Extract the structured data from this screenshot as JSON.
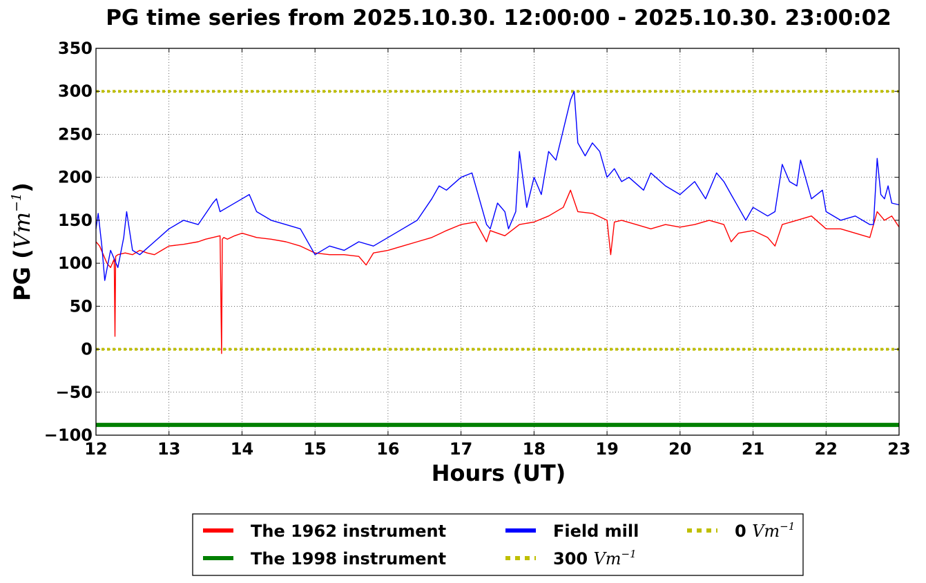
{
  "chart_data": {
    "type": "line",
    "title": "PG time series from 2025.10.30. 12:00:00 - 2025.10.30. 23:00:02",
    "xlabel": "Hours (UT)",
    "ylabel_text": "PG (",
    "ylabel_unit": "Vm",
    "ylabel_exp": "−1",
    "ylabel_close": ")",
    "xlim": [
      12,
      23
    ],
    "ylim": [
      -100,
      350
    ],
    "xticks": [
      12,
      13,
      14,
      15,
      16,
      17,
      18,
      19,
      20,
      21,
      22,
      23
    ],
    "yticks": [
      -100,
      -50,
      0,
      50,
      100,
      150,
      200,
      250,
      300,
      350
    ],
    "ytick_labels": [
      "−100",
      "−50",
      "0",
      "50",
      "100",
      "150",
      "200",
      "250",
      "300",
      "350"
    ],
    "grid": true,
    "legend_position": "bottom-center",
    "series": [
      {
        "name": "The 1962 instrument",
        "color": "#ff0000",
        "x": [
          12.0,
          12.05,
          12.1,
          12.15,
          12.2,
          12.25,
          12.26,
          12.27,
          12.3,
          12.4,
          12.5,
          12.6,
          12.7,
          12.8,
          12.9,
          13.0,
          13.2,
          13.4,
          13.5,
          13.6,
          13.7,
          13.72,
          13.73,
          13.75,
          13.8,
          13.9,
          14.0,
          14.2,
          14.4,
          14.6,
          14.8,
          15.0,
          15.2,
          15.4,
          15.6,
          15.7,
          15.8,
          16.0,
          16.2,
          16.4,
          16.6,
          16.8,
          17.0,
          17.2,
          17.35,
          17.4,
          17.6,
          17.8,
          18.0,
          18.2,
          18.4,
          18.5,
          18.6,
          18.8,
          19.0,
          19.05,
          19.1,
          19.2,
          19.4,
          19.6,
          19.8,
          20.0,
          20.2,
          20.4,
          20.6,
          20.7,
          20.8,
          21.0,
          21.2,
          21.3,
          21.4,
          21.6,
          21.8,
          22.0,
          22.2,
          22.4,
          22.6,
          22.7,
          22.8,
          22.9,
          23.0
        ],
        "y": [
          125,
          120,
          110,
          100,
          95,
          105,
          15,
          108,
          110,
          112,
          110,
          115,
          112,
          110,
          115,
          120,
          122,
          125,
          128,
          130,
          132,
          -5,
          128,
          130,
          128,
          132,
          135,
          130,
          128,
          125,
          120,
          112,
          110,
          110,
          108,
          98,
          112,
          115,
          120,
          125,
          130,
          138,
          145,
          148,
          125,
          138,
          132,
          145,
          148,
          155,
          165,
          185,
          160,
          158,
          150,
          110,
          148,
          150,
          145,
          140,
          145,
          142,
          145,
          150,
          145,
          125,
          135,
          138,
          130,
          120,
          145,
          150,
          155,
          140,
          140,
          135,
          130,
          160,
          150,
          155,
          142
        ]
      },
      {
        "name": "The 1998 instrument",
        "color": "#008000",
        "x": [
          12.0,
          23.0
        ],
        "y": [
          -88,
          -88
        ]
      },
      {
        "name": "Field mill",
        "color": "#0000ff",
        "x": [
          12.0,
          12.03,
          12.08,
          12.12,
          12.2,
          12.3,
          12.38,
          12.42,
          12.5,
          12.6,
          12.8,
          13.0,
          13.2,
          13.4,
          13.6,
          13.65,
          13.7,
          13.8,
          14.0,
          14.1,
          14.2,
          14.4,
          14.6,
          14.8,
          15.0,
          15.2,
          15.4,
          15.6,
          15.8,
          16.0,
          16.2,
          16.4,
          16.6,
          16.7,
          16.8,
          17.0,
          17.15,
          17.3,
          17.35,
          17.4,
          17.5,
          17.6,
          17.65,
          17.75,
          17.8,
          17.9,
          18.0,
          18.1,
          18.2,
          18.3,
          18.4,
          18.5,
          18.55,
          18.6,
          18.7,
          18.8,
          18.9,
          19.0,
          19.1,
          19.2,
          19.3,
          19.5,
          19.6,
          19.8,
          20.0,
          20.2,
          20.35,
          20.5,
          20.6,
          20.7,
          20.8,
          20.9,
          21.0,
          21.2,
          21.3,
          21.4,
          21.5,
          21.6,
          21.65,
          21.8,
          21.95,
          22.0,
          22.2,
          22.4,
          22.5,
          22.6,
          22.65,
          22.7,
          22.75,
          22.8,
          22.85,
          22.9,
          23.0
        ],
        "y": [
          140,
          158,
          120,
          80,
          115,
          95,
          130,
          160,
          115,
          110,
          125,
          140,
          150,
          145,
          170,
          175,
          160,
          165,
          175,
          180,
          160,
          150,
          145,
          140,
          110,
          120,
          115,
          125,
          120,
          130,
          140,
          150,
          175,
          190,
          185,
          200,
          205,
          160,
          145,
          140,
          170,
          160,
          140,
          160,
          230,
          165,
          200,
          180,
          230,
          220,
          255,
          290,
          300,
          240,
          225,
          240,
          230,
          200,
          210,
          195,
          200,
          185,
          205,
          190,
          180,
          195,
          175,
          205,
          195,
          180,
          165,
          150,
          165,
          155,
          160,
          215,
          195,
          190,
          220,
          175,
          185,
          160,
          150,
          155,
          150,
          145,
          145,
          222,
          180,
          175,
          190,
          170,
          168
        ]
      },
      {
        "name": "300 Vm−1",
        "color": "#bfbf00",
        "x": [
          12.0,
          23.0
        ],
        "y": [
          300,
          300
        ]
      },
      {
        "name": "0 Vm−1",
        "color": "#bfbf00",
        "x": [
          12.0,
          23.0
        ],
        "y": [
          0,
          0
        ]
      }
    ],
    "legend": [
      {
        "value": "The 1962 instrument",
        "unit": "",
        "exp": "",
        "color": "#ff0000",
        "style": "solid"
      },
      {
        "value": "The 1998 instrument",
        "unit": "",
        "exp": "",
        "color": "#008000",
        "style": "solid"
      },
      {
        "value": "Field mill",
        "unit": "",
        "exp": "",
        "color": "#0000ff",
        "style": "solid"
      },
      {
        "value": "300 ",
        "unit": "Vm",
        "exp": "−1",
        "color": "#bfbf00",
        "style": "dotted"
      },
      {
        "value": "0 ",
        "unit": "Vm",
        "exp": "−1",
        "color": "#bfbf00",
        "style": "dotted"
      }
    ]
  }
}
